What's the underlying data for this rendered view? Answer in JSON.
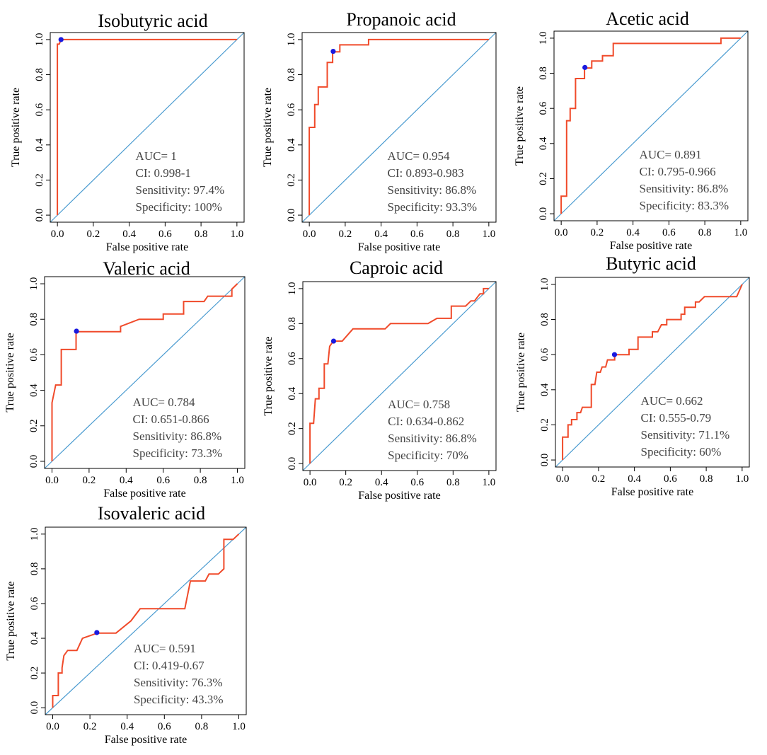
{
  "chart_data": [
    {
      "type": "line",
      "title": "Isobutyric acid",
      "xlabel": "False positive rate",
      "ylabel": "True positive rate",
      "xlim": [
        0,
        1
      ],
      "ylim": [
        0,
        1
      ],
      "ticks": [
        "0.0",
        "0.2",
        "0.4",
        "0.6",
        "0.8",
        "1.0"
      ],
      "curve": [
        [
          0,
          0
        ],
        [
          0,
          0.974
        ],
        [
          0.01,
          0.974
        ],
        [
          0.02,
          1
        ],
        [
          1,
          1
        ]
      ],
      "point": [
        0.02,
        1.0
      ],
      "annotations": [
        "AUC= 1",
        "CI: 0.998-1",
        "Sensitivity: 97.4%",
        "Specificity: 100%"
      ]
    },
    {
      "type": "line",
      "title": "Propanoic acid",
      "xlabel": "False positive rate",
      "ylabel": "True positive rate",
      "xlim": [
        0,
        1
      ],
      "ylim": [
        0,
        1
      ],
      "ticks": [
        "0.0",
        "0.2",
        "0.4",
        "0.6",
        "0.8",
        "1.0"
      ],
      "curve": [
        [
          0,
          0
        ],
        [
          0,
          0.5
        ],
        [
          0.03,
          0.5
        ],
        [
          0.03,
          0.63
        ],
        [
          0.05,
          0.63
        ],
        [
          0.05,
          0.73
        ],
        [
          0.1,
          0.73
        ],
        [
          0.1,
          0.83
        ],
        [
          0.1,
          0.87
        ],
        [
          0.13,
          0.87
        ],
        [
          0.13,
          0.93
        ],
        [
          0.17,
          0.93
        ],
        [
          0.17,
          0.97
        ],
        [
          0.33,
          0.97
        ],
        [
          0.33,
          1
        ],
        [
          1,
          1
        ]
      ],
      "point": [
        0.133,
        0.933
      ],
      "annotations": [
        "AUC= 0.954",
        "CI: 0.893-0.983",
        "Sensitivity: 86.8%",
        "Specificity: 93.3%"
      ]
    },
    {
      "type": "line",
      "title": "Acetic acid",
      "xlabel": "False positive rate",
      "ylabel": "True positive rate",
      "xlim": [
        0,
        1
      ],
      "ylim": [
        0,
        1
      ],
      "ticks": [
        "0.0",
        "0.2",
        "0.4",
        "0.6",
        "0.8",
        "1.0"
      ],
      "curve": [
        [
          0,
          0
        ],
        [
          0,
          0.1
        ],
        [
          0.03,
          0.1
        ],
        [
          0.03,
          0.53
        ],
        [
          0.05,
          0.53
        ],
        [
          0.05,
          0.6
        ],
        [
          0.08,
          0.6
        ],
        [
          0.08,
          0.77
        ],
        [
          0.13,
          0.77
        ],
        [
          0.13,
          0.83
        ],
        [
          0.17,
          0.83
        ],
        [
          0.17,
          0.87
        ],
        [
          0.23,
          0.87
        ],
        [
          0.23,
          0.9
        ],
        [
          0.29,
          0.9
        ],
        [
          0.29,
          0.97
        ],
        [
          0.89,
          0.97
        ],
        [
          0.89,
          1
        ],
        [
          1,
          1
        ]
      ],
      "point": [
        0.132,
        0.833
      ],
      "annotations": [
        "AUC= 0.891",
        "CI: 0.795-0.966",
        "Sensitivity: 86.8%",
        "Specificity: 83.3%"
      ]
    },
    {
      "type": "line",
      "title": "Valeric acid",
      "xlabel": "False positive rate",
      "ylabel": "True positive rate",
      "xlim": [
        0,
        1
      ],
      "ylim": [
        0,
        1
      ],
      "ticks": [
        "0.0",
        "0.2",
        "0.4",
        "0.6",
        "0.8",
        "1.0"
      ],
      "curve": [
        [
          0,
          0
        ],
        [
          0,
          0.33
        ],
        [
          0.02,
          0.43
        ],
        [
          0.05,
          0.43
        ],
        [
          0.05,
          0.63
        ],
        [
          0.13,
          0.63
        ],
        [
          0.13,
          0.73
        ],
        [
          0.37,
          0.73
        ],
        [
          0.37,
          0.76
        ],
        [
          0.47,
          0.8
        ],
        [
          0.6,
          0.8
        ],
        [
          0.6,
          0.83
        ],
        [
          0.71,
          0.83
        ],
        [
          0.71,
          0.9
        ],
        [
          0.82,
          0.9
        ],
        [
          0.84,
          0.93
        ],
        [
          0.97,
          0.93
        ],
        [
          0.97,
          0.97
        ],
        [
          1,
          1
        ]
      ],
      "point": [
        0.132,
        0.733
      ],
      "annotations": [
        "AUC= 0.784",
        "CI: 0.651-0.866",
        "Sensitivity: 86.8%",
        "Specificity: 73.3%"
      ]
    },
    {
      "type": "line",
      "title": "Caproic acid",
      "xlabel": "False positive rate",
      "ylabel": "True positive rate",
      "xlim": [
        0,
        1
      ],
      "ylim": [
        0,
        1
      ],
      "ticks": [
        "0.0",
        "0.2",
        "0.4",
        "0.6",
        "0.8",
        "1.0"
      ],
      "curve": [
        [
          0,
          0
        ],
        [
          0,
          0.23
        ],
        [
          0.02,
          0.23
        ],
        [
          0.03,
          0.37
        ],
        [
          0.05,
          0.37
        ],
        [
          0.05,
          0.43
        ],
        [
          0.08,
          0.43
        ],
        [
          0.08,
          0.57
        ],
        [
          0.1,
          0.57
        ],
        [
          0.11,
          0.67
        ],
        [
          0.13,
          0.7
        ],
        [
          0.18,
          0.7
        ],
        [
          0.24,
          0.77
        ],
        [
          0.42,
          0.77
        ],
        [
          0.45,
          0.8
        ],
        [
          0.66,
          0.8
        ],
        [
          0.71,
          0.83
        ],
        [
          0.79,
          0.83
        ],
        [
          0.79,
          0.9
        ],
        [
          0.87,
          0.9
        ],
        [
          0.9,
          0.93
        ],
        [
          0.92,
          0.93
        ],
        [
          0.95,
          0.97
        ],
        [
          0.97,
          0.97
        ],
        [
          0.97,
          1
        ],
        [
          1,
          1
        ]
      ],
      "point": [
        0.132,
        0.7
      ],
      "annotations": [
        "AUC= 0.758",
        "CI: 0.634-0.862",
        "Sensitivity: 86.8%",
        "Specificity: 70%"
      ]
    },
    {
      "type": "line",
      "title": "Butyric acid",
      "xlabel": "False positive rate",
      "ylabel": "True positive rate",
      "xlim": [
        0,
        1
      ],
      "ylim": [
        0,
        1
      ],
      "ticks": [
        "0.0",
        "0.2",
        "0.4",
        "0.6",
        "0.8",
        "1.0"
      ],
      "curve": [
        [
          0,
          0
        ],
        [
          0,
          0.13
        ],
        [
          0.03,
          0.13
        ],
        [
          0.03,
          0.2
        ],
        [
          0.05,
          0.2
        ],
        [
          0.05,
          0.23
        ],
        [
          0.08,
          0.23
        ],
        [
          0.08,
          0.27
        ],
        [
          0.1,
          0.27
        ],
        [
          0.11,
          0.3
        ],
        [
          0.16,
          0.3
        ],
        [
          0.16,
          0.43
        ],
        [
          0.18,
          0.43
        ],
        [
          0.19,
          0.5
        ],
        [
          0.21,
          0.5
        ],
        [
          0.22,
          0.53
        ],
        [
          0.24,
          0.53
        ],
        [
          0.25,
          0.57
        ],
        [
          0.29,
          0.57
        ],
        [
          0.29,
          0.6
        ],
        [
          0.37,
          0.6
        ],
        [
          0.37,
          0.63
        ],
        [
          0.42,
          0.63
        ],
        [
          0.42,
          0.7
        ],
        [
          0.5,
          0.7
        ],
        [
          0.5,
          0.73
        ],
        [
          0.53,
          0.73
        ],
        [
          0.55,
          0.77
        ],
        [
          0.58,
          0.77
        ],
        [
          0.58,
          0.8
        ],
        [
          0.66,
          0.8
        ],
        [
          0.66,
          0.83
        ],
        [
          0.68,
          0.83
        ],
        [
          0.68,
          0.87
        ],
        [
          0.74,
          0.87
        ],
        [
          0.74,
          0.9
        ],
        [
          0.76,
          0.9
        ],
        [
          0.79,
          0.93
        ],
        [
          0.97,
          0.93
        ],
        [
          1,
          1
        ]
      ],
      "point": [
        0.289,
        0.6
      ],
      "annotations": [
        "AUC= 0.662",
        "CI: 0.555-0.79",
        "Sensitivity: 71.1%",
        "Specificity: 60%"
      ]
    },
    {
      "type": "line",
      "title": "Isovaleric acid",
      "xlabel": "False positive rate",
      "ylabel": "True positive rate",
      "xlim": [
        0,
        1
      ],
      "ylim": [
        0,
        1
      ],
      "ticks": [
        "0.0",
        "0.2",
        "0.4",
        "0.6",
        "0.8",
        "1.0"
      ],
      "curve": [
        [
          0,
          0
        ],
        [
          0,
          0.07
        ],
        [
          0.03,
          0.07
        ],
        [
          0.03,
          0.2
        ],
        [
          0.05,
          0.2
        ],
        [
          0.05,
          0.23
        ],
        [
          0.06,
          0.3
        ],
        [
          0.08,
          0.33
        ],
        [
          0.13,
          0.33
        ],
        [
          0.16,
          0.4
        ],
        [
          0.24,
          0.43
        ],
        [
          0.34,
          0.43
        ],
        [
          0.42,
          0.5
        ],
        [
          0.47,
          0.57
        ],
        [
          0.71,
          0.57
        ],
        [
          0.74,
          0.73
        ],
        [
          0.82,
          0.73
        ],
        [
          0.84,
          0.77
        ],
        [
          0.89,
          0.77
        ],
        [
          0.92,
          0.8
        ],
        [
          0.92,
          0.97
        ],
        [
          0.97,
          0.97
        ],
        [
          1,
          1
        ]
      ],
      "point": [
        0.237,
        0.433
      ],
      "annotations": [
        "AUC= 0.591",
        "CI: 0.419-0.67",
        "Sensitivity: 76.3%",
        "Specificity: 43.3%"
      ]
    }
  ]
}
